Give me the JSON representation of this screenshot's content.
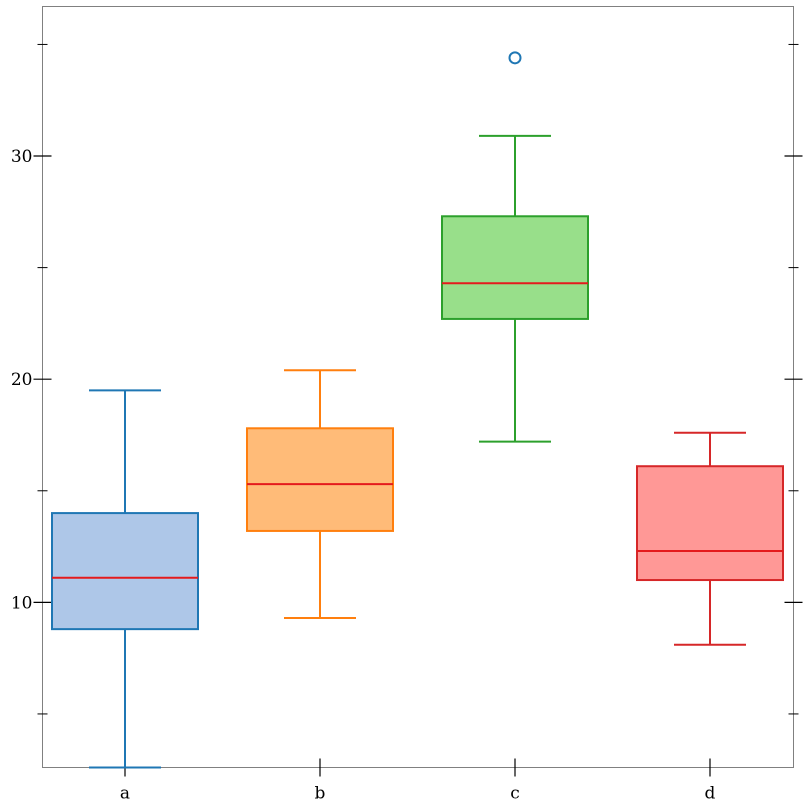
{
  "chart_data": {
    "type": "box",
    "title": "",
    "xlabel": "",
    "ylabel": "",
    "categories": [
      "a",
      "b",
      "c",
      "d"
    ],
    "ylim": [
      2.6,
      36.7
    ],
    "yticks_major": [
      10,
      20,
      30
    ],
    "yticks_minor": [
      5,
      15,
      25,
      35
    ],
    "grid": false,
    "legend": "none",
    "median_color": "#e41a1c",
    "boxes": [
      {
        "category": "a",
        "whisker_low": 2.6,
        "q1": 8.8,
        "median": 11.1,
        "q3": 14.0,
        "whisker_high": 19.5,
        "outliers": [],
        "stroke": "#1f77b4",
        "fill": "#aec7e8"
      },
      {
        "category": "b",
        "whisker_low": 9.3,
        "q1": 13.2,
        "median": 15.3,
        "q3": 17.8,
        "whisker_high": 20.4,
        "outliers": [],
        "stroke": "#ff7f0e",
        "fill": "#ffbb78"
      },
      {
        "category": "c",
        "whisker_low": 17.2,
        "q1": 22.7,
        "median": 24.3,
        "q3": 27.3,
        "whisker_high": 30.9,
        "outliers": [
          34.4
        ],
        "stroke": "#2ca02c",
        "fill": "#98df8a",
        "outlier_color": "#1f77b4"
      },
      {
        "category": "d",
        "whisker_low": 8.1,
        "q1": 11.0,
        "median": 12.3,
        "q3": 16.1,
        "whisker_high": 17.6,
        "outliers": [],
        "stroke": "#d62728",
        "fill": "#ff9896"
      }
    ]
  }
}
